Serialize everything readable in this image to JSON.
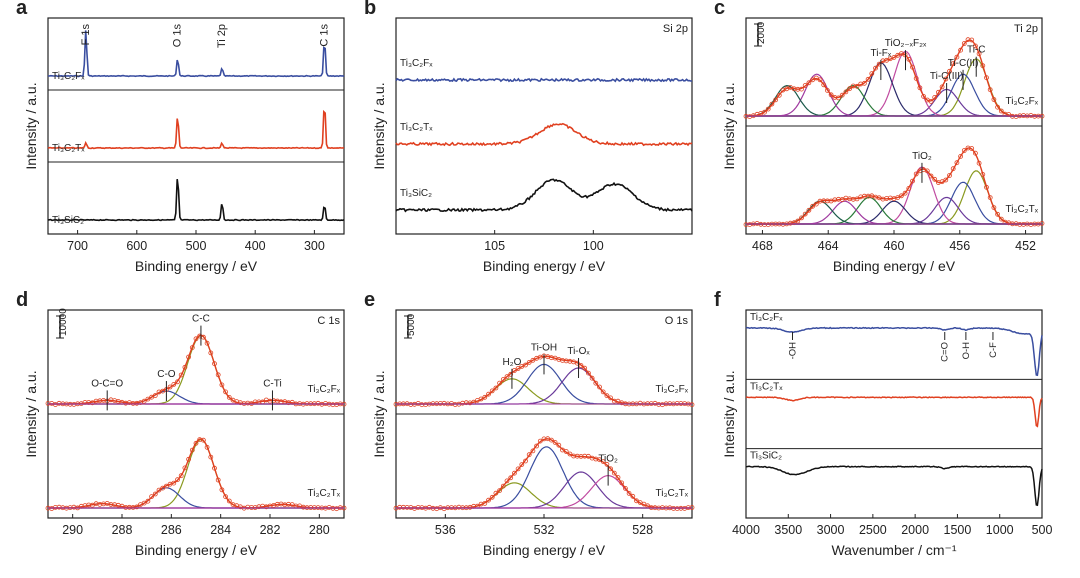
{
  "figure": {
    "panels": [
      {
        "letter": "a",
        "xlabel": "Binding energy / eV",
        "ylabel": "Intensity / a.u."
      },
      {
        "letter": "b",
        "xlabel": "Binding energy / eV",
        "ylabel": "Intensity / a.u."
      },
      {
        "letter": "c",
        "xlabel": "Binding energy / eV",
        "ylabel": "Intensity / a.u."
      },
      {
        "letter": "d",
        "xlabel": "Binding energy / eV",
        "ylabel": "Intensity / a.u."
      },
      {
        "letter": "e",
        "xlabel": "Binding energy / eV",
        "ylabel": "Intensity / a.u."
      },
      {
        "letter": "f",
        "xlabel": "Wavenumber / cm⁻¹",
        "ylabel": "Intensity / a.u."
      }
    ]
  },
  "chart_data": [
    {
      "id": "a",
      "type": "line",
      "title": "",
      "xlabel": "Binding energy / eV",
      "ylabel": "Intensity / a.u.",
      "xlim": [
        750,
        250
      ],
      "xticks": [
        700,
        600,
        500,
        400,
        300
      ],
      "stacked": true,
      "series": [
        {
          "name": "Ti₃C₂Fₓ",
          "color": "#3a4ea0",
          "peaks": [
            {
              "x": 686,
              "h": 0.9
            },
            {
              "x": 531,
              "h": 0.35
            },
            {
              "x": 456,
              "h": 0.15
            },
            {
              "x": 283,
              "h": 0.7
            }
          ]
        },
        {
          "name": "Ti₃C₂Tₓ",
          "color": "#e04020",
          "peaks": [
            {
              "x": 686,
              "h": 0.1
            },
            {
              "x": 531,
              "h": 0.65
            },
            {
              "x": 456,
              "h": 0.1
            },
            {
              "x": 283,
              "h": 0.9
            }
          ]
        },
        {
          "name": "Ti₃SiC₂",
          "color": "#111111",
          "peaks": [
            {
              "x": 531,
              "h": 0.9
            },
            {
              "x": 456,
              "h": 0.35
            },
            {
              "x": 283,
              "h": 0.3
            }
          ]
        }
      ],
      "annotations": [
        "F 1s",
        "O 1s",
        "Ti 2p",
        "C 1s"
      ]
    },
    {
      "id": "b",
      "type": "line",
      "title": "Si 2p",
      "xlabel": "Binding energy / eV",
      "ylabel": "Intensity / a.u.",
      "xlim": [
        110,
        95
      ],
      "xticks": [
        105,
        100
      ],
      "stacked": true,
      "series": [
        {
          "name": "Ti₃C₂Fₓ",
          "color": "#3a4ea0",
          "peaks": []
        },
        {
          "name": "Ti₃C₂Tₓ",
          "color": "#e04020",
          "peaks": [
            {
              "x": 101.8,
              "h": 0.5
            }
          ]
        },
        {
          "name": "Ti₃SiC₂",
          "color": "#111111",
          "peaks": [
            {
              "x": 102,
              "h": 0.75
            },
            {
              "x": 98.9,
              "h": 0.65
            }
          ]
        }
      ]
    },
    {
      "id": "c",
      "type": "line",
      "title": "Ti 2p",
      "xlabel": "Binding energy / eV",
      "ylabel": "Intensity / a.u.",
      "xlim": [
        469,
        451
      ],
      "xticks": [
        468,
        464,
        460,
        456,
        452
      ],
      "scale_bar": "2000",
      "subplots": [
        {
          "name": "Ti₃C₂Fₓ",
          "components": [
            {
              "label": "Ti-C",
              "center": 455.0,
              "height": 0.75
            },
            {
              "label": "Ti-C(II)",
              "center": 455.8,
              "height": 0.55
            },
            {
              "label": "Ti-C(III)",
              "center": 456.8,
              "height": 0.35
            },
            {
              "label": "TiO₂₋ₓF₂ₓ",
              "center": 459.3,
              "height": 0.85
            },
            {
              "label": "Ti-Fₓ",
              "center": 460.8,
              "height": 0.7
            },
            {
              "label": "",
              "center": 462.5,
              "height": 0.4
            },
            {
              "label": "",
              "center": 464.7,
              "height": 0.55
            },
            {
              "label": "",
              "center": 466.5,
              "height": 0.4
            }
          ]
        },
        {
          "name": "Ti₃C₂Tₓ",
          "components": [
            {
              "label": "",
              "center": 455.0,
              "height": 0.7
            },
            {
              "label": "",
              "center": 455.8,
              "height": 0.55
            },
            {
              "label": "",
              "center": 456.8,
              "height": 0.35
            },
            {
              "label": "TiO₂",
              "center": 458.3,
              "height": 0.75
            },
            {
              "label": "",
              "center": 460.0,
              "height": 0.3
            },
            {
              "label": "",
              "center": 461.5,
              "height": 0.35
            },
            {
              "label": "",
              "center": 463.0,
              "height": 0.3
            },
            {
              "label": "",
              "center": 464.5,
              "height": 0.3
            }
          ]
        }
      ]
    },
    {
      "id": "d",
      "type": "line",
      "title": "C 1s",
      "xlabel": "Binding energy / eV",
      "ylabel": "Intensity / a.u.",
      "xlim": [
        291,
        279
      ],
      "xticks": [
        290,
        288,
        286,
        284,
        282,
        280
      ],
      "scale_bar": "10000",
      "subplots": [
        {
          "name": "Ti₃C₂Fₓ",
          "components": [
            {
              "label": "C-C",
              "center": 284.8,
              "height": 0.95
            },
            {
              "label": "C-O",
              "center": 286.2,
              "height": 0.18
            },
            {
              "label": "O-C=O",
              "center": 288.6,
              "height": 0.05
            },
            {
              "label": "C-Ti",
              "center": 281.9,
              "height": 0.05
            }
          ]
        },
        {
          "name": "Ti₃C₂Tₓ",
          "components": [
            {
              "label": "",
              "center": 284.8,
              "height": 0.95
            },
            {
              "label": "",
              "center": 286.2,
              "height": 0.28
            },
            {
              "label": "",
              "center": 288.8,
              "height": 0.06
            },
            {
              "label": "",
              "center": 281.5,
              "height": 0.05
            }
          ]
        }
      ]
    },
    {
      "id": "e",
      "type": "line",
      "title": "O 1s",
      "xlabel": "Binding energy / eV",
      "ylabel": "Intensity / a.u.",
      "xlim": [
        538,
        526
      ],
      "xticks": [
        536,
        532,
        528
      ],
      "scale_bar": "5000",
      "subplots": [
        {
          "name": "Ti₃C₂Fₓ",
          "components": [
            {
              "label": "H₂O",
              "center": 533.3,
              "height": 0.35
            },
            {
              "label": "Ti-OH",
              "center": 532.0,
              "height": 0.55
            },
            {
              "label": "Ti-Oₓ",
              "center": 530.6,
              "height": 0.5
            }
          ]
        },
        {
          "name": "Ti₃C₂Tₓ",
          "components": [
            {
              "label": "",
              "center": 533.2,
              "height": 0.35
            },
            {
              "label": "",
              "center": 531.9,
              "height": 0.85
            },
            {
              "label": "",
              "center": 530.5,
              "height": 0.5
            },
            {
              "label": "TiO₂",
              "center": 529.4,
              "height": 0.45
            }
          ]
        }
      ]
    },
    {
      "id": "f",
      "type": "line",
      "title": "",
      "xlabel": "Wavenumber / cm⁻¹",
      "ylabel": "Intensity / a.u.",
      "xlim": [
        4000,
        500
      ],
      "xticks": [
        4000,
        3500,
        3000,
        2500,
        2000,
        1500,
        1000,
        500
      ],
      "stacked": true,
      "series": [
        {
          "name": "Ti₃C₂Fₓ",
          "color": "#3a4ea0"
        },
        {
          "name": "Ti₃C₂Tₓ",
          "color": "#e04020"
        },
        {
          "name": "Ti₃SiC₂",
          "color": "#111111"
        }
      ],
      "annotations": [
        "-OH",
        "C=O",
        "O-H",
        "C-F"
      ]
    }
  ]
}
